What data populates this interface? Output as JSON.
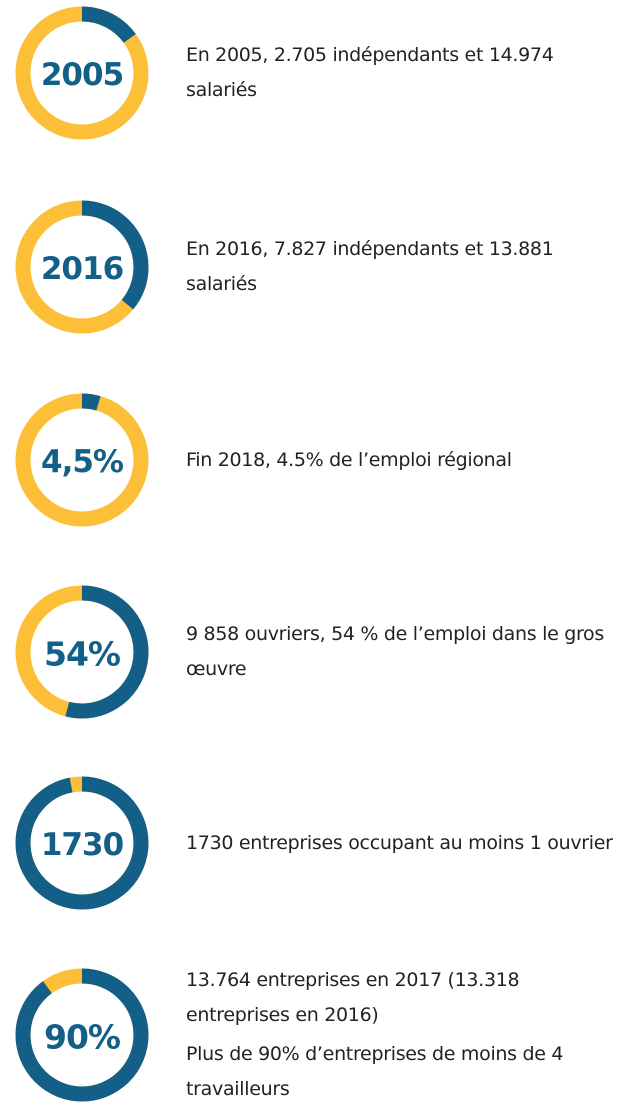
{
  "items": [
    {
      "label": "2005",
      "share": 15,
      "paragraphs": [
        "En 2005, 2.705 indépendants et 14.974 salariés"
      ]
    },
    {
      "label": "2016",
      "share": 36,
      "paragraphs": [
        "En 2016, 7.827 indépendants et 13.881 salariés"
      ]
    },
    {
      "label": "4,5%",
      "share": 4.5,
      "paragraphs": [
        "Fin 2018, 4.5% de l’emploi régional"
      ]
    },
    {
      "label": "54%",
      "share": 54,
      "paragraphs": [
        "9 858 ouvriers, 54 % de l’emploi dans le gros œuvre"
      ]
    },
    {
      "label": "1730",
      "share": 97,
      "paragraphs": [
        "1730 entreprises occupant au moins 1 ouvrier"
      ]
    },
    {
      "label": "90%",
      "share": 90,
      "paragraphs": [
        "13.764 entreprises en 2017 (13.318 entreprises en 2016)",
        "Plus de 90% d’entreprises de moins de 4 travailleurs"
      ]
    }
  ]
}
